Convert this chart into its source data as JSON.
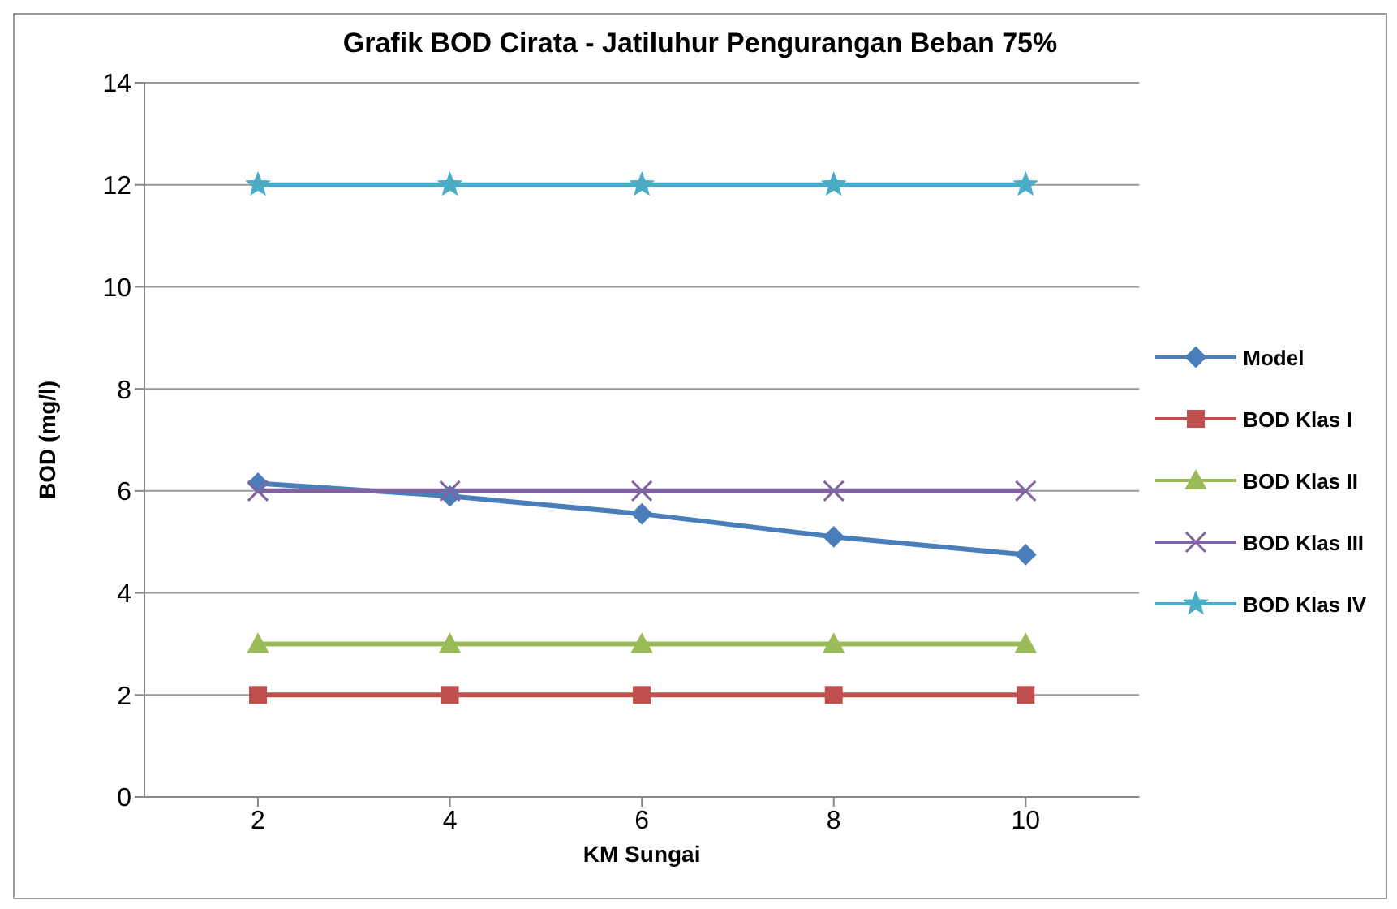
{
  "chart_data": {
    "type": "line",
    "title": "Grafik BOD  Cirata - Jatiluhur Pengurangan Beban 75%",
    "xlabel": "KM Sungai",
    "ylabel": "BOD (mg/l)",
    "categories": [
      "2",
      "4",
      "6",
      "8",
      "10"
    ],
    "series": [
      {
        "name": "Model",
        "color": "#4a7ebb",
        "marker": "diamond",
        "values": [
          6.15,
          5.9,
          5.55,
          5.1,
          4.75
        ]
      },
      {
        "name": "BOD Klas I",
        "color": "#c0504d",
        "marker": "square",
        "values": [
          2,
          2,
          2,
          2,
          2
        ]
      },
      {
        "name": "BOD Klas II",
        "color": "#9bbb59",
        "marker": "triangle",
        "values": [
          3,
          3,
          3,
          3,
          3
        ]
      },
      {
        "name": "BOD Klas III",
        "color": "#8064a2",
        "marker": "cross",
        "values": [
          6,
          6,
          6,
          6,
          6
        ]
      },
      {
        "name": "BOD Klas IV",
        "color": "#4bacc6",
        "marker": "star",
        "values": [
          12,
          12,
          12,
          12,
          12
        ]
      }
    ],
    "ylim": [
      0,
      14
    ],
    "yticks": [
      0,
      2,
      4,
      6,
      8,
      10,
      12,
      14
    ],
    "grid": "y",
    "legend": "right"
  }
}
